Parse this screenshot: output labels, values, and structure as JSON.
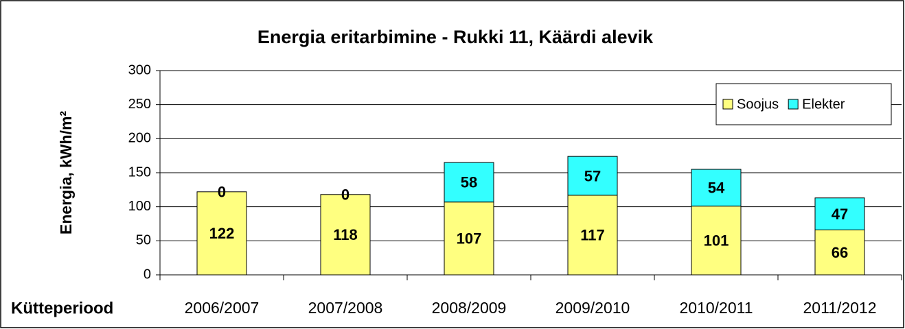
{
  "chart_data": {
    "type": "stacked_bar",
    "title": "Energia eritarbimine - Rukki 11, Käärdi alevik",
    "y_label": "Energia, kWh/m²",
    "x_label": "Kütteperiood",
    "categories": [
      "2006/2007",
      "2007/2008",
      "2008/2009",
      "2009/2010",
      "2010/2011",
      "2011/2012"
    ],
    "series": [
      {
        "name": "Soojus",
        "color": "#ffff80",
        "values": [
          122,
          118,
          107,
          117,
          101,
          66
        ]
      },
      {
        "name": "Elekter",
        "color": "#33ffff",
        "values": [
          0,
          0,
          58,
          57,
          54,
          47
        ]
      }
    ],
    "ylim": [
      0,
      300
    ],
    "yticks": [
      0,
      50,
      100,
      150,
      200,
      250,
      300
    ],
    "grid": true,
    "legend": "upper right"
  }
}
